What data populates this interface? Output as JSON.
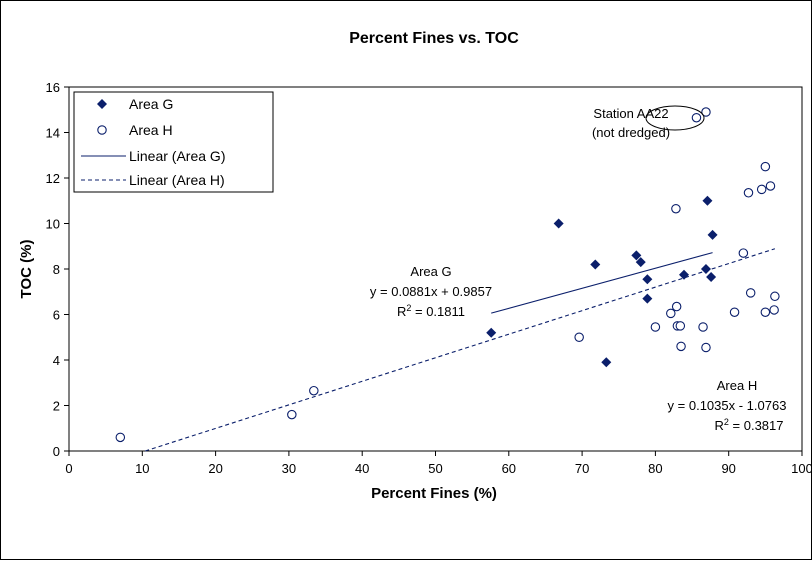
{
  "chart_data": {
    "type": "scatter",
    "title": "Percent Fines vs. TOC",
    "xlabel": "Percent Fines (%)",
    "ylabel": "TOC (%)",
    "xlim": [
      0,
      100
    ],
    "ylim": [
      0,
      16
    ],
    "xticks": [
      "0",
      "10",
      "20",
      "30",
      "40",
      "50",
      "60",
      "70",
      "80",
      "90",
      "100"
    ],
    "yticks": [
      "0",
      "2",
      "4",
      "6",
      "8",
      "10",
      "12",
      "14",
      "16"
    ],
    "grid": false,
    "legend_position": "top-left",
    "series": [
      {
        "name": "Area G",
        "marker": "filled-diamond",
        "color": "#0b1f6b",
        "points": [
          [
            57.6,
            5.2
          ],
          [
            66.8,
            10.0
          ],
          [
            71.8,
            8.2
          ],
          [
            73.3,
            3.9
          ],
          [
            77.4,
            8.6
          ],
          [
            78.0,
            8.3
          ],
          [
            78.9,
            7.55
          ],
          [
            78.9,
            6.7
          ],
          [
            83.9,
            7.75
          ],
          [
            86.9,
            8.0
          ],
          [
            87.1,
            11.0
          ],
          [
            87.6,
            7.65
          ],
          [
            87.8,
            9.5
          ]
        ]
      },
      {
        "name": "Area H",
        "marker": "open-circle",
        "color": "#0b1f6b",
        "points": [
          [
            7.0,
            0.6
          ],
          [
            30.4,
            1.6
          ],
          [
            33.4,
            2.65
          ],
          [
            69.6,
            5.0
          ],
          [
            80.0,
            5.45
          ],
          [
            82.1,
            6.05
          ],
          [
            82.8,
            10.65
          ],
          [
            82.9,
            6.35
          ],
          [
            83.0,
            5.5
          ],
          [
            83.4,
            5.5
          ],
          [
            83.5,
            4.6
          ],
          [
            86.5,
            5.45
          ],
          [
            86.9,
            4.55
          ],
          [
            90.8,
            6.1
          ],
          [
            92.0,
            8.7
          ],
          [
            92.7,
            11.35
          ],
          [
            93.0,
            6.95
          ],
          [
            94.5,
            11.5
          ],
          [
            95.0,
            12.5
          ],
          [
            95.0,
            6.1
          ],
          [
            95.7,
            11.65
          ],
          [
            96.2,
            6.2
          ],
          [
            96.3,
            6.8
          ],
          [
            85.6,
            14.65
          ],
          [
            86.9,
            14.9
          ]
        ]
      }
    ],
    "trendlines": [
      {
        "name": "Linear (Area G)",
        "style": "solid",
        "slope": 0.0881,
        "intercept": 0.9857,
        "x_range": [
          57.6,
          87.8
        ]
      },
      {
        "name": "Linear (Area H)",
        "style": "dashed",
        "slope": 0.1035,
        "intercept": -1.0763,
        "x_range": [
          10.4,
          96.3
        ]
      }
    ],
    "annotations": {
      "area_g": {
        "label": "Area G",
        "equation": "y = 0.0881x + 0.9857",
        "r2_prefix": "R",
        "r2_sup": "2",
        "r2_value": " = 0.1811"
      },
      "area_h": {
        "label": "Area H",
        "equation": "y = 0.1035x - 1.0763",
        "r2_prefix": "R",
        "r2_sup": "2",
        "r2_value": " = 0.3817"
      },
      "station": {
        "line1": "Station AA22",
        "line2": "(not dredged)"
      }
    }
  }
}
